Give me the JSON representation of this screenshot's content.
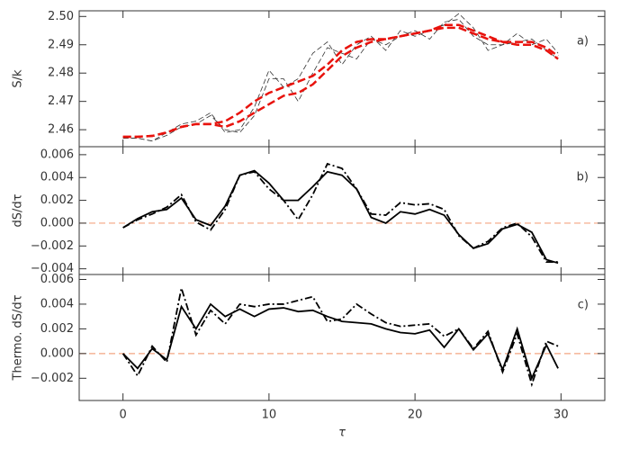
{
  "chart_data": [
    {
      "type": "line",
      "panel_label": "a)",
      "ylabel": "S/k",
      "x": [
        0,
        1,
        2,
        3,
        4,
        5,
        6,
        7,
        8,
        9,
        10,
        11,
        12,
        13,
        14,
        15,
        16,
        17,
        18,
        19,
        20,
        21,
        22,
        23,
        24,
        25,
        26,
        27,
        28,
        29,
        29.8
      ],
      "xlim": [
        -3,
        33
      ],
      "xticks": [
        0,
        10,
        20,
        30
      ],
      "ylim": [
        2.454,
        2.502
      ],
      "yticks": [
        {
          "value": 2.46,
          "label": "2.46"
        },
        {
          "value": 2.47,
          "label": "2.47"
        },
        {
          "value": 2.48,
          "label": "2.48"
        },
        {
          "value": 2.49,
          "label": "2.49"
        },
        {
          "value": 2.5,
          "label": "2.50"
        }
      ],
      "series": [
        {
          "color": "#333333",
          "dash": "6,3",
          "width": 0.8,
          "values": [
            2.457,
            2.457,
            2.456,
            2.459,
            2.462,
            2.463,
            2.466,
            2.459,
            2.46,
            2.468,
            2.481,
            2.475,
            2.478,
            2.487,
            2.491,
            2.483,
            2.49,
            2.493,
            2.488,
            2.495,
            2.493,
            2.495,
            2.497,
            2.501,
            2.496,
            2.488,
            2.49,
            2.494,
            2.49,
            2.492,
            2.487
          ]
        },
        {
          "color": "#333333",
          "dash": "6,3",
          "width": 0.8,
          "values": [
            2.457,
            2.457,
            2.456,
            2.458,
            2.461,
            2.462,
            2.465,
            2.46,
            2.459,
            2.465,
            2.478,
            2.478,
            2.47,
            2.48,
            2.489,
            2.487,
            2.485,
            2.492,
            2.49,
            2.493,
            2.495,
            2.492,
            2.498,
            2.499,
            2.493,
            2.49,
            2.49,
            2.491,
            2.492,
            2.488,
            2.485
          ]
        },
        {
          "color": "#e8120c",
          "dash": "9,4",
          "width": 2.5,
          "values": [
            2.4575,
            2.4575,
            2.4578,
            2.459,
            2.461,
            2.462,
            2.462,
            2.463,
            2.466,
            2.47,
            2.473,
            2.475,
            2.477,
            2.479,
            2.483,
            2.488,
            2.491,
            2.492,
            2.492,
            2.493,
            2.494,
            2.495,
            2.496,
            2.496,
            2.494,
            2.492,
            2.491,
            2.491,
            2.491,
            2.489,
            2.486
          ]
        },
        {
          "color": "#e8120c",
          "dash": "9,4",
          "width": 2.5,
          "values": [
            2.4575,
            2.4575,
            2.4578,
            2.459,
            2.461,
            2.462,
            2.462,
            2.461,
            2.463,
            2.466,
            2.469,
            2.472,
            2.473,
            2.476,
            2.481,
            2.486,
            2.489,
            2.491,
            2.492,
            2.493,
            2.494,
            2.495,
            2.497,
            2.497,
            2.495,
            2.493,
            2.491,
            2.49,
            2.49,
            2.488,
            2.485
          ]
        }
      ]
    },
    {
      "type": "line",
      "panel_label": "b)",
      "ylabel": "dS/dτ",
      "x": [
        0,
        1,
        2,
        3,
        4,
        5,
        6,
        7,
        8,
        9,
        10,
        11,
        12,
        13,
        14,
        15,
        16,
        17,
        18,
        19,
        20,
        21,
        22,
        23,
        24,
        25,
        26,
        27,
        28,
        29,
        29.8
      ],
      "xlim": [
        -3,
        33
      ],
      "xticks": [
        0,
        10,
        20,
        30
      ],
      "ylim": [
        -0.0045,
        0.0067
      ],
      "yticks": [
        {
          "value": -0.004,
          "label": "−0.004"
        },
        {
          "value": -0.002,
          "label": "−0.002"
        },
        {
          "value": 0,
          "label": "0.000"
        },
        {
          "value": 0.002,
          "label": "0.002"
        },
        {
          "value": 0.004,
          "label": "0.004"
        },
        {
          "value": 0.006,
          "label": "0.006"
        }
      ],
      "hline": 0,
      "hline_color": "#f4a582",
      "series": [
        {
          "color": "#000000",
          "dash": "none",
          "width": 1.8,
          "values": [
            -0.0004,
            0.0004,
            0.001,
            0.0012,
            0.0022,
            0.0003,
            -0.0002,
            0.0015,
            0.0042,
            0.0046,
            0.0035,
            0.002,
            0.002,
            0.0032,
            0.0045,
            0.0042,
            0.003,
            0.0005,
            0.0,
            0.001,
            0.0008,
            0.0012,
            0.0007,
            -0.001,
            -0.0022,
            -0.0018,
            -0.0005,
            -0.0001,
            -0.0008,
            -0.0032,
            -0.0035
          ]
        },
        {
          "color": "#000000",
          "dash": "8,3,2,3",
          "width": 1.8,
          "values": [
            -0.0004,
            0.0003,
            0.0008,
            0.0014,
            0.0025,
            0.0001,
            -0.0006,
            0.0012,
            0.0042,
            0.0045,
            0.003,
            0.002,
            0.0003,
            0.0025,
            0.0052,
            0.0048,
            0.003,
            0.0008,
            0.0007,
            0.0018,
            0.0016,
            0.0017,
            0.0012,
            -0.0011,
            -0.0022,
            -0.0016,
            -0.0004,
            0.0,
            -0.0012,
            -0.0034,
            -0.0034
          ]
        }
      ]
    },
    {
      "type": "line",
      "panel_label": "c)",
      "ylabel": "Thermo. dS/dτ",
      "xlabel": "τ",
      "x": [
        0,
        1,
        2,
        3,
        4,
        5,
        6,
        7,
        8,
        9,
        10,
        11,
        12,
        13,
        14,
        15,
        16,
        17,
        18,
        19,
        20,
        21,
        22,
        23,
        24,
        25,
        26,
        27,
        28,
        29,
        29.8
      ],
      "xlim": [
        -3,
        33
      ],
      "xticks": [
        0,
        10,
        20,
        30
      ],
      "ylim": [
        -0.0038,
        0.0064
      ],
      "yticks": [
        {
          "value": -0.002,
          "label": "−0.002"
        },
        {
          "value": 0,
          "label": "0.000"
        },
        {
          "value": 0.002,
          "label": "0.002"
        },
        {
          "value": 0.004,
          "label": "0.004"
        },
        {
          "value": 0.006,
          "label": "0.006"
        }
      ],
      "hline": 0,
      "hline_color": "#f4a582",
      "series": [
        {
          "color": "#000000",
          "dash": "none",
          "width": 1.8,
          "values": [
            0.0,
            -0.0012,
            0.0004,
            -0.0005,
            0.0038,
            0.002,
            0.004,
            0.003,
            0.0036,
            0.003,
            0.0036,
            0.0037,
            0.0034,
            0.0035,
            0.003,
            0.0026,
            0.0025,
            0.0024,
            0.002,
            0.0017,
            0.0016,
            0.0019,
            0.0005,
            0.002,
            0.0003,
            0.0016,
            -0.0013,
            0.002,
            -0.002,
            0.0007,
            -0.0012
          ]
        },
        {
          "color": "#000000",
          "dash": "8,3,2,3",
          "width": 1.8,
          "values": [
            0.0,
            -0.0018,
            0.0006,
            -0.0007,
            0.0053,
            0.0015,
            0.0035,
            0.0024,
            0.004,
            0.0038,
            0.004,
            0.004,
            0.0043,
            0.0046,
            0.0026,
            0.0028,
            0.004,
            0.0032,
            0.0025,
            0.0022,
            0.0023,
            0.0024,
            0.0014,
            0.002,
            0.0004,
            0.0018,
            -0.0015,
            0.0016,
            -0.0025,
            0.001,
            0.0006
          ]
        }
      ]
    }
  ]
}
